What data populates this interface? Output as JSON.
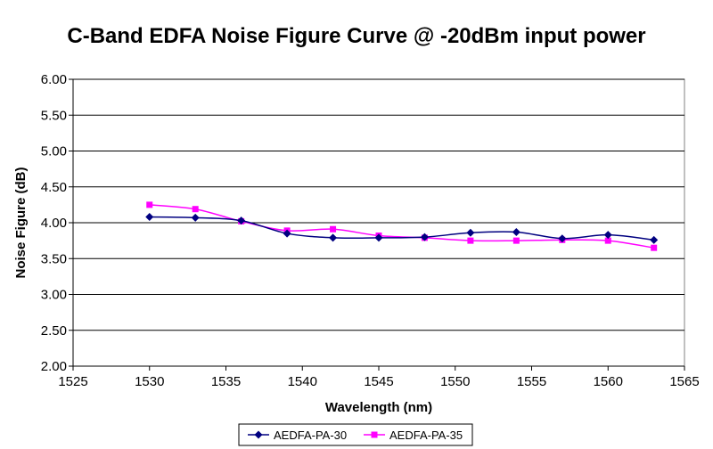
{
  "chart_data": {
    "type": "line",
    "title": "C-Band EDFA Noise Figure Curve @ -20dBm input power",
    "xlabel": "Wavelength (nm)",
    "ylabel": "Noise Figure (dB)",
    "xlim": [
      1525,
      1565
    ],
    "ylim": [
      2.0,
      6.0
    ],
    "x_ticks": [
      "1525",
      "1530",
      "1535",
      "1540",
      "1545",
      "1550",
      "1555",
      "1560",
      "1565"
    ],
    "y_ticks": [
      "2.00",
      "2.50",
      "3.00",
      "3.50",
      "4.00",
      "4.50",
      "5.00",
      "5.50",
      "6.00"
    ],
    "grid": "horizontal",
    "legend_position": "bottom",
    "x": [
      1530,
      1533,
      1536,
      1539,
      1542,
      1545,
      1548,
      1551,
      1554,
      1557,
      1560,
      1563
    ],
    "series": [
      {
        "name": "AEDFA-PA-30",
        "color": "#000080",
        "marker": "diamond",
        "values": [
          4.08,
          4.07,
          4.03,
          3.85,
          3.79,
          3.79,
          3.8,
          3.86,
          3.87,
          3.78,
          3.83,
          3.76
        ]
      },
      {
        "name": "AEDFA-PA-35",
        "color": "#ff00ff",
        "marker": "square",
        "values": [
          4.25,
          4.19,
          4.02,
          3.89,
          3.91,
          3.82,
          3.79,
          3.75,
          3.75,
          3.76,
          3.75,
          3.65
        ]
      }
    ]
  }
}
